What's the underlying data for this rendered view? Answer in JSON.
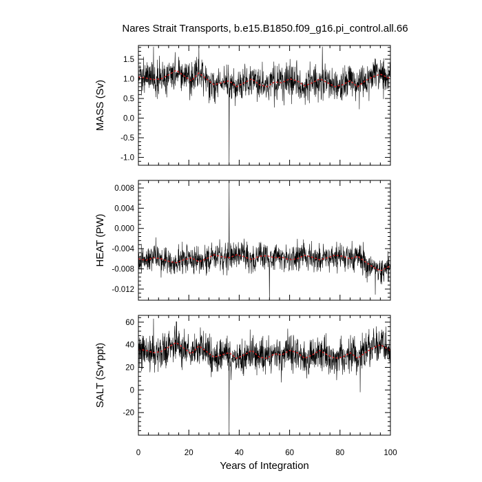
{
  "chart_data": {
    "type": "line",
    "title": "Nares Strait Transports, b.e15.B1850.f09_g16.pi_control.all.66",
    "xlabel": "Years of Integration",
    "xlim": [
      0,
      100
    ],
    "xticks": [
      0,
      20,
      40,
      60,
      80,
      100
    ],
    "xtick_labels": [
      "0",
      "20",
      "40",
      "60",
      "80",
      "100"
    ],
    "colors": {
      "raw": "#000000",
      "smoothed": "#d62020"
    },
    "panels": [
      {
        "ylabel": "MASS (Sv)",
        "ylim": [
          -1.2,
          1.85
        ],
        "yticks": [
          1.5,
          1.0,
          0.5,
          0.0,
          -0.5,
          -1.0
        ],
        "ytick_labels": [
          "1.5",
          "1.0",
          "0.5",
          "0.0",
          "-0.5",
          "-1.0"
        ],
        "smooth_x": [
          0,
          3,
          6,
          9,
          12,
          15,
          18,
          21,
          24,
          27,
          30,
          33,
          36,
          39,
          42,
          45,
          48,
          51,
          54,
          57,
          60,
          63,
          66,
          69,
          72,
          75,
          78,
          81,
          84,
          87,
          90,
          93,
          96,
          100
        ],
        "smooth_y": [
          1.05,
          1.02,
          0.98,
          1.0,
          1.1,
          1.22,
          1.08,
          0.95,
          1.15,
          1.0,
          0.85,
          0.9,
          0.95,
          0.8,
          0.9,
          1.0,
          0.85,
          0.8,
          0.92,
          0.9,
          1.0,
          0.95,
          0.82,
          0.9,
          1.0,
          0.9,
          0.8,
          0.85,
          0.95,
          0.8,
          0.95,
          1.05,
          1.12,
          1.0
        ],
        "noise_amplitude": 0.22,
        "spikes": [
          {
            "x": 36,
            "y": -1.17
          },
          {
            "x": 6,
            "y": 1.82
          },
          {
            "x": 24,
            "y": 1.82
          },
          {
            "x": 73,
            "y": 1.82
          }
        ]
      },
      {
        "ylabel": "HEAT (PW)",
        "ylim": [
          -0.0142,
          0.0095
        ],
        "yticks": [
          0.008,
          0.004,
          0.0,
          -0.004,
          -0.008,
          -0.012
        ],
        "ytick_labels": [
          "0.008",
          "0.004",
          "0.000",
          "-0.004",
          "-0.008",
          "-0.012"
        ],
        "smooth_x": [
          0,
          3,
          6,
          9,
          12,
          15,
          18,
          21,
          24,
          27,
          30,
          33,
          36,
          39,
          42,
          45,
          48,
          51,
          54,
          57,
          60,
          63,
          66,
          69,
          72,
          75,
          78,
          81,
          84,
          87,
          90,
          93,
          96,
          100
        ],
        "smooth_y": [
          -0.006,
          -0.0063,
          -0.0058,
          -0.006,
          -0.0065,
          -0.0068,
          -0.0062,
          -0.0058,
          -0.0066,
          -0.006,
          -0.0052,
          -0.0056,
          -0.0058,
          -0.0052,
          -0.0056,
          -0.0062,
          -0.0055,
          -0.0054,
          -0.0058,
          -0.0057,
          -0.0062,
          -0.006,
          -0.0053,
          -0.0057,
          -0.0062,
          -0.0058,
          -0.0053,
          -0.0055,
          -0.006,
          -0.0055,
          -0.0066,
          -0.0076,
          -0.0084,
          -0.0074
        ],
        "noise_amplitude": 0.0014,
        "spikes": [
          {
            "x": 36,
            "y": 0.0094
          },
          {
            "x": 52,
            "y": -0.0142
          },
          {
            "x": 94,
            "y": -0.0131
          }
        ]
      },
      {
        "ylabel": "SALT (Sv*ppt)",
        "ylim": [
          -40,
          66
        ],
        "yticks": [
          60,
          40,
          20,
          0,
          -20
        ],
        "ytick_labels": [
          "60",
          "40",
          "20",
          "0",
          "-20"
        ],
        "smooth_x": [
          0,
          3,
          6,
          9,
          12,
          15,
          18,
          21,
          24,
          27,
          30,
          33,
          36,
          39,
          42,
          45,
          48,
          51,
          54,
          57,
          60,
          63,
          66,
          69,
          72,
          75,
          78,
          81,
          84,
          87,
          90,
          93,
          96,
          100
        ],
        "smooth_y": [
          36,
          35,
          33,
          34,
          38,
          42,
          37,
          32,
          39,
          34,
          29,
          31,
          33,
          28,
          31,
          35,
          29,
          28,
          32,
          31,
          35,
          33,
          28,
          31,
          35,
          31,
          28,
          29,
          33,
          28,
          33,
          37,
          40,
          35
        ],
        "noise_amplitude": 8,
        "spikes": [
          {
            "x": 36,
            "y": -39
          },
          {
            "x": 6,
            "y": 63
          },
          {
            "x": 88,
            "y": -2
          }
        ]
      }
    ]
  }
}
